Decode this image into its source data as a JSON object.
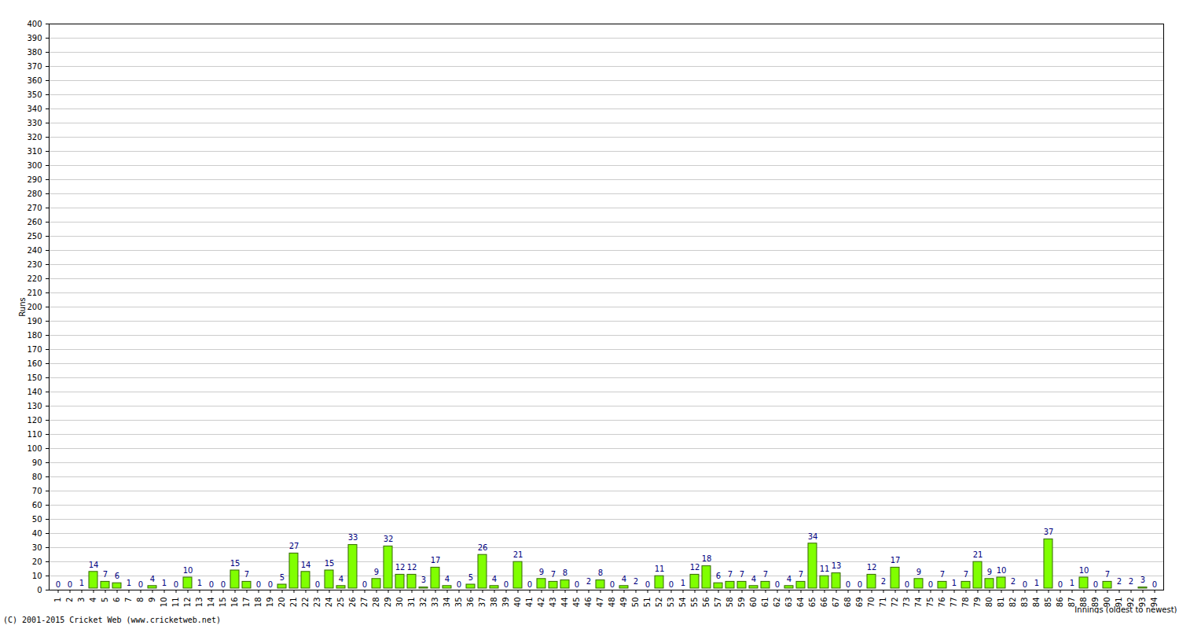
{
  "chart_data": {
    "type": "bar",
    "x_label": "Innings (oldest to newest)",
    "y_label": "Runs",
    "caption": "(C) 2001-2015 Cricket Web (www.cricketweb.net)",
    "categories": [
      "1",
      "2",
      "3",
      "4",
      "5",
      "6",
      "7",
      "8",
      "9",
      "10",
      "11",
      "12",
      "13",
      "14",
      "15",
      "16",
      "17",
      "18",
      "19",
      "20",
      "21",
      "22",
      "23",
      "24",
      "25",
      "26",
      "27",
      "28",
      "29",
      "30",
      "31",
      "32",
      "33",
      "34",
      "35",
      "36",
      "37",
      "38",
      "39",
      "40",
      "41",
      "42",
      "43",
      "44",
      "45",
      "46",
      "47",
      "48",
      "49",
      "50",
      "51",
      "52",
      "53",
      "54",
      "55",
      "56",
      "57",
      "58",
      "59",
      "60",
      "61",
      "62",
      "63",
      "64",
      "65",
      "66",
      "67",
      "68",
      "69",
      "70",
      "71",
      "72",
      "73",
      "74",
      "75",
      "76",
      "77",
      "78",
      "79",
      "80",
      "81",
      "82",
      "83",
      "84",
      "85",
      "86",
      "87",
      "88",
      "89",
      "90",
      "91",
      "92",
      "93",
      "94"
    ],
    "values": [
      0,
      0,
      1,
      14,
      7,
      6,
      1,
      0,
      4,
      1,
      0,
      10,
      1,
      0,
      0,
      15,
      7,
      0,
      0,
      5,
      27,
      14,
      0,
      15,
      4,
      33,
      0,
      9,
      32,
      12,
      12,
      3,
      17,
      4,
      0,
      5,
      26,
      4,
      0,
      21,
      0,
      9,
      7,
      8,
      0,
      2,
      8,
      0,
      4,
      2,
      0,
      11,
      0,
      1,
      12,
      18,
      6,
      7,
      7,
      4,
      7,
      0,
      4,
      7,
      34,
      11,
      13,
      0,
      0,
      12,
      2,
      17,
      0,
      9,
      0,
      7,
      1,
      7,
      21,
      9,
      10,
      2,
      0,
      1,
      37,
      0,
      1,
      10,
      0,
      7,
      2,
      2,
      3,
      0
    ],
    "color": "#80ff00",
    "ylim": [
      0,
      400
    ],
    "yticks": [
      0,
      10,
      20,
      30,
      40,
      50,
      60,
      70,
      80,
      90,
      100,
      110,
      120,
      130,
      140,
      150,
      160,
      170,
      180,
      190,
      200,
      210,
      220,
      230,
      240,
      250,
      260,
      270,
      280,
      290,
      300,
      310,
      320,
      330,
      340,
      350,
      360,
      370,
      380,
      390,
      400
    ],
    "grid": true,
    "data_labels": true
  }
}
